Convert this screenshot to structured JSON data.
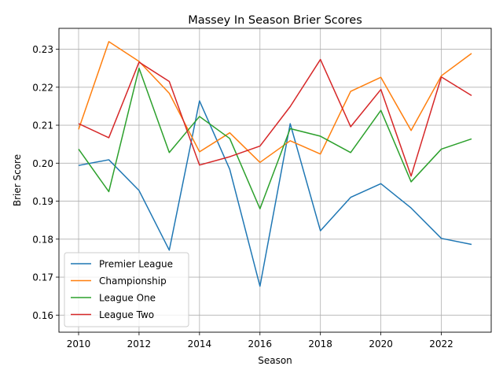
{
  "chart_data": {
    "type": "line",
    "title": "Massey In Season Brier Scores",
    "xlabel": "Season",
    "ylabel": "Brier Score",
    "x": [
      2010,
      2011,
      2012,
      2013,
      2014,
      2015,
      2016,
      2017,
      2018,
      2019,
      2020,
      2021,
      2022,
      2023
    ],
    "xlim": [
      2009.35,
      2023.65
    ],
    "ylim": [
      0.1555,
      0.2355
    ],
    "xticks": [
      2010,
      2012,
      2014,
      2016,
      2018,
      2020,
      2022
    ],
    "yticks": [
      0.16,
      0.17,
      0.18,
      0.19,
      0.2,
      0.21,
      0.22,
      0.23
    ],
    "ytick_labels": [
      "0.16",
      "0.17",
      "0.18",
      "0.19",
      "0.20",
      "0.21",
      "0.22",
      "0.23"
    ],
    "grid": true,
    "legend_position": "lower-left",
    "series": [
      {
        "name": "Premier League",
        "color": "#1f77b4",
        "values": [
          0.1994,
          0.2009,
          0.1928,
          0.1771,
          0.2164,
          0.1984,
          0.1676,
          0.2104,
          0.1822,
          0.191,
          0.1946,
          0.1882,
          0.1802,
          0.1786
        ]
      },
      {
        "name": "Championship",
        "color": "#ff7f0e",
        "values": [
          0.2089,
          0.232,
          0.2268,
          0.2184,
          0.203,
          0.208,
          0.2002,
          0.2059,
          0.2024,
          0.2189,
          0.2226,
          0.2086,
          0.223,
          0.2289
        ]
      },
      {
        "name": "League One",
        "color": "#2ca02c",
        "values": [
          0.2037,
          0.1925,
          0.225,
          0.2028,
          0.2123,
          0.2065,
          0.188,
          0.2091,
          0.2071,
          0.2028,
          0.2139,
          0.1951,
          0.2037,
          0.2064
        ]
      },
      {
        "name": "League Two",
        "color": "#d62728",
        "values": [
          0.2104,
          0.2067,
          0.2266,
          0.2215,
          0.1995,
          0.2017,
          0.2045,
          0.2149,
          0.2273,
          0.2096,
          0.2194,
          0.1966,
          0.2227,
          0.2178
        ]
      }
    ]
  }
}
